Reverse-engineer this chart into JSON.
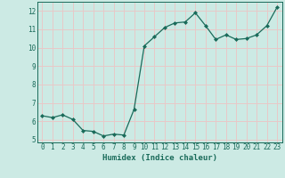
{
  "x": [
    0,
    1,
    2,
    3,
    4,
    5,
    6,
    7,
    8,
    9,
    10,
    11,
    12,
    13,
    14,
    15,
    16,
    17,
    18,
    19,
    20,
    21,
    22,
    23
  ],
  "y": [
    6.3,
    6.2,
    6.35,
    6.1,
    5.5,
    5.45,
    5.2,
    5.3,
    5.25,
    6.65,
    10.1,
    10.6,
    11.1,
    11.35,
    11.4,
    11.9,
    11.2,
    10.45,
    10.7,
    10.45,
    10.5,
    10.7,
    11.2,
    12.2
  ],
  "line_color": "#1a6b5a",
  "marker": "D",
  "marker_size": 2.0,
  "line_width": 0.9,
  "bg_color": "#cceae4",
  "grid_color": "#e8c8c8",
  "axis_color": "#1a6b5a",
  "tick_color": "#1a6b5a",
  "label_color": "#1a6b5a",
  "xlabel": "Humidex (Indice chaleur)",
  "xlim": [
    -0.5,
    23.5
  ],
  "ylim": [
    4.85,
    12.5
  ],
  "yticks": [
    5,
    6,
    7,
    8,
    9,
    10,
    11,
    12
  ],
  "xticks": [
    0,
    1,
    2,
    3,
    4,
    5,
    6,
    7,
    8,
    9,
    10,
    11,
    12,
    13,
    14,
    15,
    16,
    17,
    18,
    19,
    20,
    21,
    22,
    23
  ],
  "tick_fontsize": 5.5,
  "xlabel_fontsize": 6.5
}
